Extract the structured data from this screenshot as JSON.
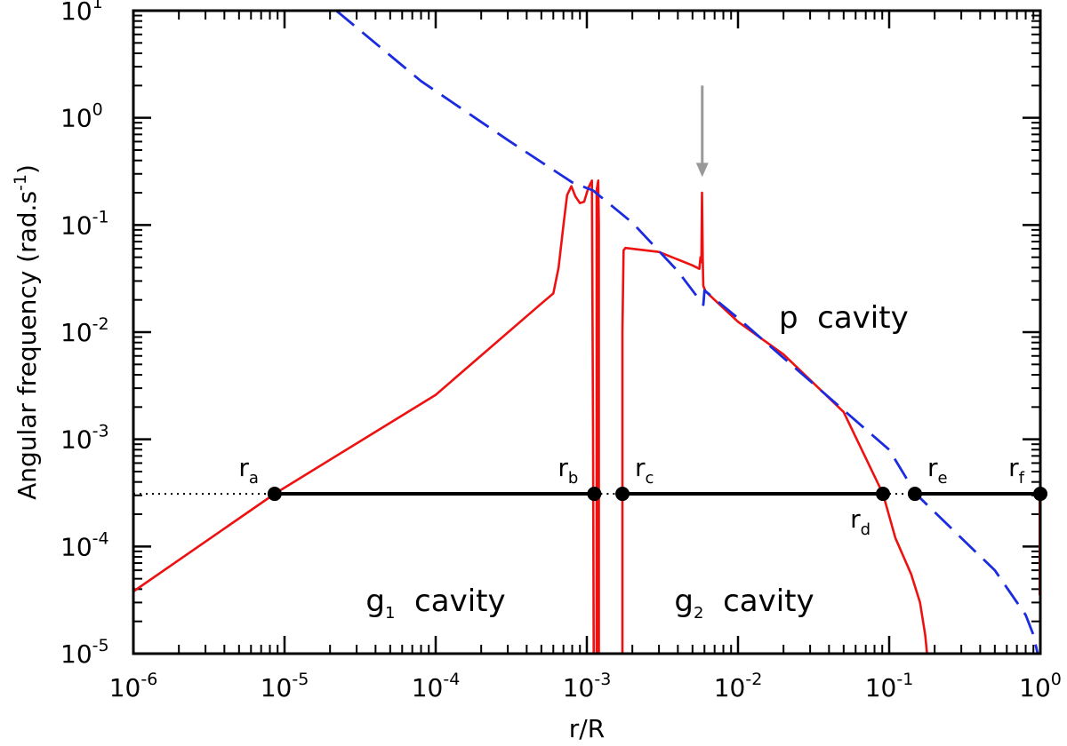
{
  "chart_data": {
    "type": "line",
    "xlabel": "r/R",
    "ylabel": "Angular frequency (rad.s",
    "ylabel_exp": "-1",
    "ylabel_close": ")",
    "xscale": "log",
    "yscale": "log",
    "xlim": [
      1e-06,
      1
    ],
    "ylim": [
      1e-05,
      10
    ],
    "x_ticks": [
      {
        "base": "10",
        "exp": "-6",
        "value": 1e-06
      },
      {
        "base": "10",
        "exp": "-5",
        "value": 1e-05
      },
      {
        "base": "10",
        "exp": "-4",
        "value": 0.0001
      },
      {
        "base": "10",
        "exp": "-3",
        "value": 0.001
      },
      {
        "base": "10",
        "exp": "-2",
        "value": 0.01
      },
      {
        "base": "10",
        "exp": "-1",
        "value": 0.1
      },
      {
        "base": "10",
        "exp": "0",
        "value": 1
      }
    ],
    "y_ticks": [
      {
        "base": "10",
        "exp": "-5",
        "value": 1e-05
      },
      {
        "base": "10",
        "exp": "-4",
        "value": 0.0001
      },
      {
        "base": "10",
        "exp": "-3",
        "value": 0.001
      },
      {
        "base": "10",
        "exp": "-2",
        "value": 0.01
      },
      {
        "base": "10",
        "exp": "-1",
        "value": 0.1
      },
      {
        "base": "10",
        "exp": "0",
        "value": 1
      },
      {
        "base": "10",
        "exp": "1",
        "value": 10
      }
    ],
    "colors": {
      "buoyancy": "#ee1111",
      "lamb": "#1a2be0",
      "mode": "#000000",
      "arrow": "#999999"
    },
    "mode_frequency": 0.00031,
    "series": [
      {
        "style": "solid-red",
        "segments": [
          [
            [
              1e-06,
              3.8e-05
            ],
            [
              8.6e-06,
              0.00031
            ],
            [
              0.0001,
              0.0026
            ],
            [
              0.0005,
              0.0185
            ],
            [
              0.0006,
              0.023
            ],
            [
              0.00065,
              0.04
            ],
            [
              0.0007,
              0.1
            ],
            [
              0.00074,
              0.19
            ],
            [
              0.00079,
              0.23
            ],
            [
              0.00084,
              0.185
            ],
            [
              0.0009,
              0.16
            ],
            [
              0.00096,
              0.165
            ],
            [
              0.00102,
              0.22
            ],
            [
              0.00108,
              0.26
            ],
            [
              0.0011,
              0.001
            ],
            [
              0.00111,
              1e-05
            ]
          ],
          [
            [
              0.00116,
              1e-05
            ],
            [
              0.00116,
              0.21
            ],
            [
              0.00119,
              0.26
            ],
            [
              0.0012,
              0.1
            ],
            [
              0.0012,
              1e-05
            ]
          ],
          [
            [
              0.00172,
              1e-05
            ],
            [
              0.00172,
              0.01
            ],
            [
              0.00175,
              0.058
            ],
            [
              0.0018,
              0.061
            ],
            [
              0.003,
              0.056
            ],
            [
              0.005,
              0.042
            ],
            [
              0.00555,
              0.039
            ],
            [
              0.00565,
              0.05
            ],
            [
              0.00572,
              0.045
            ],
            [
              0.00578,
              0.2
            ],
            [
              0.00585,
              0.045
            ],
            [
              0.0059,
              0.027
            ],
            [
              0.0061,
              0.024
            ],
            [
              0.007,
              0.02
            ],
            [
              0.01,
              0.0125
            ],
            [
              0.02,
              0.0062
            ],
            [
              0.05,
              0.0018
            ],
            [
              0.091,
              0.00031
            ],
            [
              0.11,
              0.00012
            ],
            [
              0.14,
              5.5e-05
            ],
            [
              0.16,
              3e-05
            ],
            [
              0.173,
              1.5e-05
            ],
            [
              0.178,
              1e-05
            ]
          ],
          [
            [
              0.99,
              3.5e-05
            ],
            [
              0.99,
              0.00031
            ],
            [
              1.0,
              0.00031
            ]
          ]
        ]
      },
      {
        "style": "dashed-blue",
        "segments": [
          [
            [
              2.2e-05,
              10
            ],
            [
              8e-05,
              2.2
            ],
            [
              0.0003,
              0.62
            ],
            [
              0.0008,
              0.25
            ],
            [
              0.0011,
              0.21
            ],
            [
              0.002,
              0.105
            ],
            [
              0.004,
              0.037
            ],
            [
              0.0059,
              0.018
            ],
            [
              0.006,
              0.0245
            ],
            [
              0.01,
              0.0135
            ],
            [
              0.03,
              0.0035
            ],
            [
              0.1,
              0.0008
            ],
            [
              0.15,
              0.00031
            ],
            [
              0.3,
              0.00012
            ],
            [
              0.5,
              6e-05
            ],
            [
              0.8,
              2.3e-05
            ],
            [
              0.9,
              1.5e-05
            ],
            [
              0.96,
              1e-05
            ]
          ]
        ]
      }
    ],
    "mode_points": [
      {
        "label": "r",
        "sub": "a",
        "x": 8.6e-06,
        "label_pos": "above-left"
      },
      {
        "label": "r",
        "sub": "b",
        "x": 0.00112,
        "label_pos": "above-left"
      },
      {
        "label": "r",
        "sub": "c",
        "x": 0.00172,
        "label_pos": "above-right"
      },
      {
        "label": "r",
        "sub": "d",
        "x": 0.091,
        "label_pos": "below-left"
      },
      {
        "label": "r",
        "sub": "e",
        "x": 0.148,
        "label_pos": "above-right"
      },
      {
        "label": "r",
        "sub": "f",
        "x": 1.0,
        "label_pos": "above-left"
      }
    ],
    "mode_line_segments": [
      {
        "style": "dotted",
        "from": 1e-06,
        "to": 8.6e-06
      },
      {
        "style": "solid",
        "from": 8.6e-06,
        "to": 0.00112
      },
      {
        "style": "dotted",
        "from": 0.00112,
        "to": 0.00172
      },
      {
        "style": "solid",
        "from": 0.00172,
        "to": 0.091
      },
      {
        "style": "dotted",
        "from": 0.091,
        "to": 0.148
      },
      {
        "style": "solid",
        "from": 0.148,
        "to": 1.0
      }
    ],
    "annotations": [
      {
        "kind": "arrow",
        "x": 0.0058,
        "y_from": 2.0,
        "y_to": 0.28
      },
      {
        "kind": "text",
        "prefix": "p",
        "sub": "",
        "suffix": "cavity",
        "x": 0.05,
        "y": 0.011
      },
      {
        "kind": "text",
        "prefix": "g",
        "sub": "1",
        "suffix": "cavity",
        "x": 0.0001,
        "y": 2.5e-05
      },
      {
        "kind": "text",
        "prefix": "g",
        "sub": "2",
        "suffix": "cavity",
        "x": 0.011,
        "y": 2.5e-05
      }
    ]
  }
}
